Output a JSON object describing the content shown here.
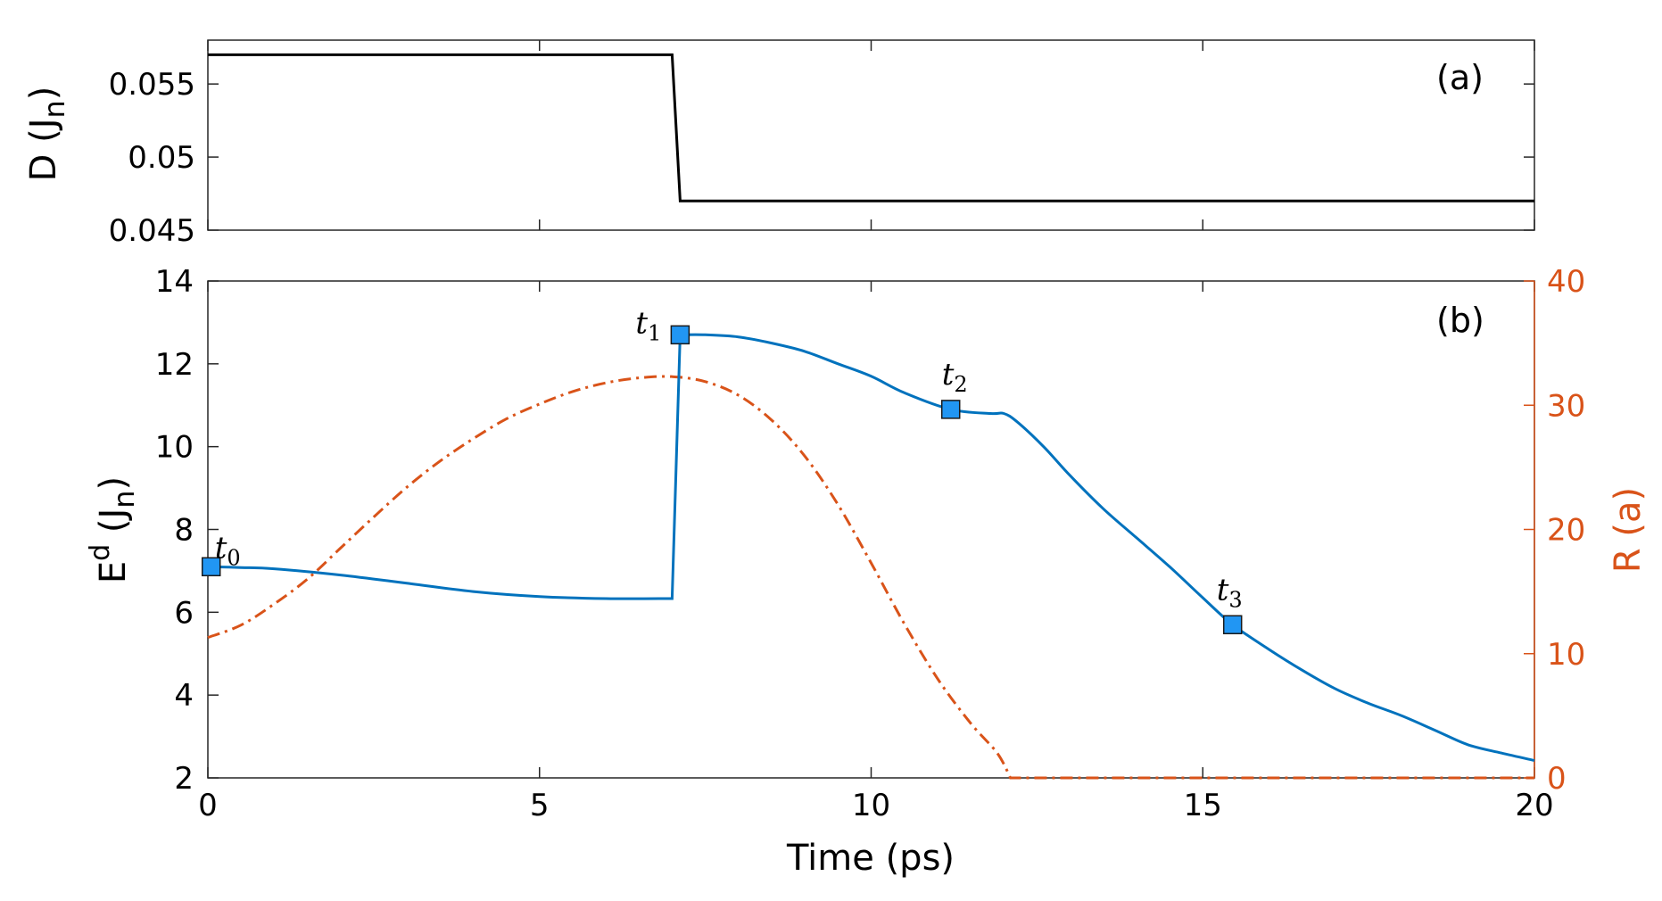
{
  "chart_data": [
    {
      "panel": "(a)",
      "type": "line",
      "xlabel": "",
      "ylabel": "D (J_n)",
      "xlim": [
        0,
        20
      ],
      "ylim": [
        0.045,
        0.058
      ],
      "yticks": [
        0.045,
        0.05,
        0.055
      ],
      "ytick_labels": [
        "0.045",
        "0.05",
        "0.055"
      ],
      "series": [
        {
          "color": "#000000",
          "style": "solid",
          "points": [
            [
              0,
              0.057
            ],
            [
              7.0,
              0.057
            ],
            [
              7.12,
              0.047
            ],
            [
              20,
              0.047
            ]
          ]
        }
      ]
    },
    {
      "panel": "(b)",
      "type": "line",
      "xlabel": "Time (ps)",
      "ylabel": "E^d (J_n)",
      "y2label": "R (a)",
      "xlim": [
        0,
        20
      ],
      "xticks": [
        0,
        5,
        10,
        15,
        20
      ],
      "xtick_labels": [
        "0",
        "5",
        "10",
        "15",
        "20"
      ],
      "ylim": [
        2,
        14
      ],
      "yticks": [
        2,
        4,
        6,
        8,
        10,
        12,
        14
      ],
      "ytick_labels": [
        "2",
        "4",
        "6",
        "8",
        "10",
        "12",
        "14"
      ],
      "y2lim": [
        0,
        40
      ],
      "y2ticks": [
        0,
        10,
        20,
        30,
        40
      ],
      "y2tick_labels": [
        "0",
        "10",
        "20",
        "30",
        "40"
      ],
      "series": [
        {
          "axis": "left",
          "color": "#0072BD",
          "style": "solid",
          "points": [
            [
              0,
              7.1
            ],
            [
              0.5,
              7.08
            ],
            [
              1,
              7.05
            ],
            [
              2,
              6.9
            ],
            [
              3,
              6.7
            ],
            [
              4,
              6.5
            ],
            [
              5,
              6.38
            ],
            [
              6,
              6.33
            ],
            [
              7.0,
              6.33
            ],
            [
              7.12,
              12.7
            ],
            [
              7.5,
              12.7
            ],
            [
              8,
              12.65
            ],
            [
              8.5,
              12.5
            ],
            [
              9,
              12.3
            ],
            [
              9.5,
              12.0
            ],
            [
              10,
              11.7
            ],
            [
              10.5,
              11.3
            ],
            [
              11.2,
              10.9
            ],
            [
              11.8,
              10.8
            ],
            [
              12.0,
              10.8
            ],
            [
              12.2,
              10.6
            ],
            [
              12.6,
              10.0
            ],
            [
              13,
              9.3
            ],
            [
              13.5,
              8.5
            ],
            [
              14,
              7.8
            ],
            [
              14.5,
              7.1
            ],
            [
              15,
              6.35
            ],
            [
              15.45,
              5.7
            ],
            [
              16,
              5.1
            ],
            [
              16.5,
              4.6
            ],
            [
              17,
              4.15
            ],
            [
              17.5,
              3.8
            ],
            [
              18,
              3.5
            ],
            [
              18.5,
              3.15
            ],
            [
              19,
              2.8
            ],
            [
              19.5,
              2.6
            ],
            [
              20,
              2.42
            ]
          ]
        },
        {
          "axis": "right",
          "color": "#D95319",
          "style": "dash-dot",
          "points": [
            [
              0,
              11.3
            ],
            [
              0.5,
              12.3
            ],
            [
              1,
              14.0
            ],
            [
              1.5,
              16.0
            ],
            [
              2,
              18.5
            ],
            [
              2.5,
              21.0
            ],
            [
              3,
              23.4
            ],
            [
              3.5,
              25.5
            ],
            [
              4,
              27.3
            ],
            [
              4.5,
              28.9
            ],
            [
              5,
              30.1
            ],
            [
              5.5,
              31.1
            ],
            [
              6,
              31.8
            ],
            [
              6.5,
              32.2
            ],
            [
              7,
              32.3
            ],
            [
              7.5,
              31.9
            ],
            [
              8,
              30.8
            ],
            [
              8.5,
              28.8
            ],
            [
              9,
              25.9
            ],
            [
              9.5,
              22.0
            ],
            [
              10,
              17.3
            ],
            [
              10.5,
              12.4
            ],
            [
              11,
              8.0
            ],
            [
              11.5,
              4.4
            ],
            [
              11.9,
              2.0
            ],
            [
              12.1,
              0
            ],
            [
              20,
              0
            ]
          ]
        }
      ],
      "markers": [
        {
          "label": "t",
          "sub": "0",
          "x": 0.05,
          "y": 7.1
        },
        {
          "label": "t",
          "sub": "1",
          "x": 7.12,
          "y": 12.7
        },
        {
          "label": "t",
          "sub": "2",
          "x": 11.2,
          "y": 10.9
        },
        {
          "label": "t",
          "sub": "3",
          "x": 15.45,
          "y": 5.7
        }
      ],
      "marker_color": "#2196F3"
    }
  ]
}
